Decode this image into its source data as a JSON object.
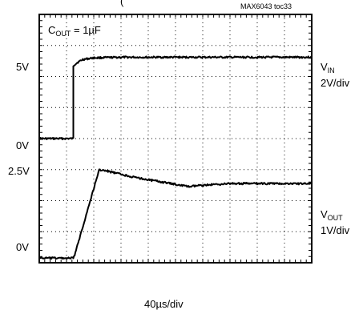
{
  "chart_data": {
    "type": "line",
    "title_fragment": "(",
    "title_suffix": "= ",
    "title_end": ")",
    "title_sub": "",
    "code": "MAX6043 toc33",
    "annotation": {
      "main": "C",
      "sub": "OUT",
      "rest": " = 1µF"
    },
    "xlabel": "40µs/div",
    "grid": {
      "x_divisions": 10,
      "y_divisions": 8,
      "grid": true
    },
    "left_labels": [
      "5V",
      "0V",
      "2.5V",
      "0V"
    ],
    "series": [
      {
        "name": "VIN",
        "name_main": "V",
        "name_sub": "IN",
        "scale": "2V/div",
        "low_level": "0V",
        "high_level": "5V",
        "x_div": [
          0,
          1.25,
          1.25,
          1.4,
          1.6,
          2.0,
          3.0,
          5.0,
          8.0,
          10.0
        ],
        "y_div": [
          4.0,
          4.0,
          6.35,
          6.45,
          6.55,
          6.6,
          6.62,
          6.62,
          6.62,
          6.62
        ]
      },
      {
        "name": "VOUT",
        "name_main": "V",
        "name_sub": "OUT",
        "scale": "1V/div",
        "low_level": "0V",
        "high_level": "2.5V",
        "x_div": [
          0,
          1.25,
          1.3,
          2.2,
          2.5,
          3.5,
          4.5,
          5.5,
          6.0,
          7.0,
          8.0,
          10.0
        ],
        "y_div": [
          0.15,
          0.15,
          0.25,
          3.0,
          2.95,
          2.75,
          2.6,
          2.45,
          2.5,
          2.55,
          2.55,
          2.55
        ]
      }
    ]
  }
}
